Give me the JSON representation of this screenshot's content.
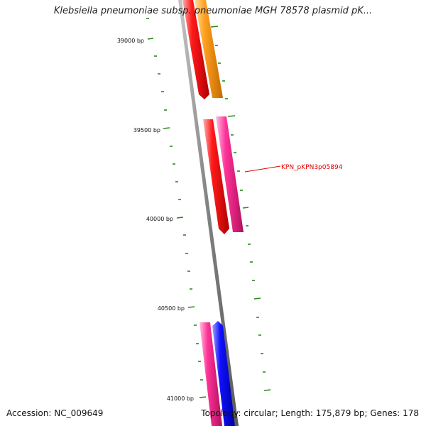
{
  "title": "Klebsiella pneumoniae subsp. pneumoniae MGH 78578 plasmid pK...",
  "footer": {
    "accession": "Accession: NC_009649",
    "summary": "Topology: circular; Length: 175,879 bp; Genes: 178"
  },
  "colors": {
    "backbone": "#888888",
    "tick": "#2a8a1a",
    "label": "#dd0000",
    "red_gene": "#ff0000",
    "orange_gene": "#ff9900",
    "pink_gene": "#ff3399",
    "blue_gene": "#0000ff"
  },
  "tick_labels": [
    "39000 bp",
    "39500 bp",
    "40000 bp",
    "40500 bp",
    "41000 bp"
  ],
  "gene_label": "KPN_pKPN3p05894"
}
